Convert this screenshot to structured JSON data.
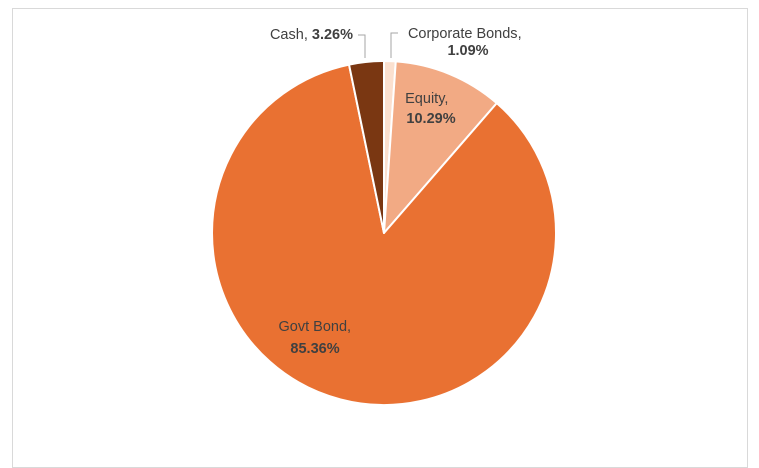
{
  "chart_data": {
    "type": "pie",
    "title": "",
    "start_angle_deg": 0,
    "slices": [
      {
        "name": "Corporate Bonds",
        "value": 1.09,
        "label_value": "1.09%",
        "color": "#FBE0CF"
      },
      {
        "name": "Equity",
        "value": 10.29,
        "label_value": "10.29%",
        "color": "#F2AA84"
      },
      {
        "name": "Govt Bond",
        "value": 85.36,
        "label_value": "85.36%",
        "color": "#E97132"
      },
      {
        "name": "Cash",
        "value": 3.26,
        "label_value": "3.26%",
        "color": "#7A3712"
      }
    ],
    "legend": "none",
    "slice_border_color": "#FFFFFF"
  }
}
